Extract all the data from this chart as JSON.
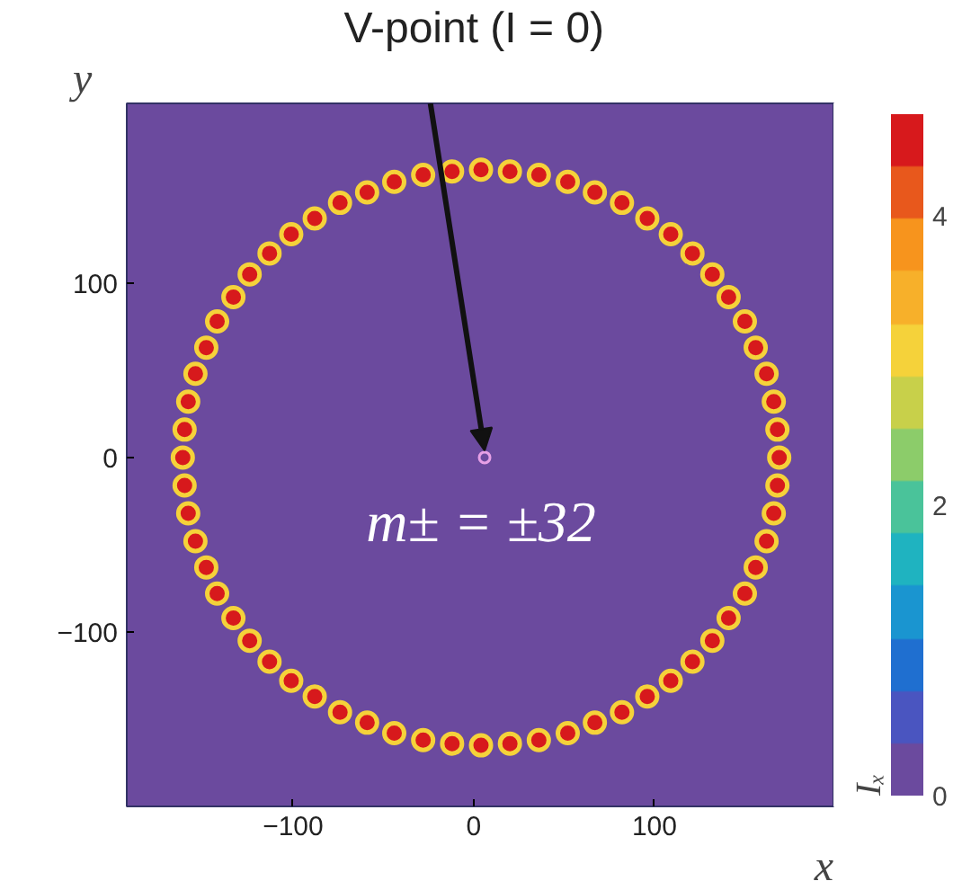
{
  "chart_data": {
    "type": "scatter",
    "x": [
      169,
      168,
      166,
      162,
      156,
      150,
      141,
      132,
      121,
      109,
      96,
      82,
      67,
      52,
      36,
      20,
      4,
      -12,
      -28,
      -44,
      -59,
      -74,
      -88,
      -101,
      -113,
      -124,
      -133,
      -142,
      -148,
      -154,
      -158,
      -160,
      -161,
      -160,
      -158,
      -154,
      -148,
      -142,
      -133,
      -124,
      -113,
      -101,
      -88,
      -74,
      -59,
      -44,
      -28,
      -12,
      4,
      20,
      36,
      52,
      67,
      82,
      96,
      109,
      121,
      132,
      141,
      150,
      156,
      162,
      166,
      168
    ],
    "values": [
      0,
      16,
      32,
      48,
      63,
      78,
      92,
      105,
      117,
      128,
      137,
      146,
      152,
      158,
      162,
      164,
      165,
      164,
      162,
      158,
      152,
      146,
      137,
      128,
      117,
      105,
      92,
      78,
      63,
      48,
      32,
      16,
      0,
      -16,
      -32,
      -48,
      -63,
      -78,
      -92,
      -105,
      -117,
      -128,
      -137,
      -146,
      -152,
      -158,
      -162,
      -164,
      -165,
      -164,
      -162,
      -158,
      -152,
      -146,
      -137,
      -128,
      -117,
      -105,
      -92,
      -78,
      -63,
      -48,
      -32,
      -16
    ],
    "cvalues": [
      4.5,
      4.5,
      4.5,
      4.5,
      4.5,
      4.5,
      4.5,
      4.5,
      4.5,
      4.5,
      4.5,
      4.5,
      4.5,
      4.5,
      4.5,
      4.5,
      4.5,
      4.5,
      4.5,
      4.5,
      4.5,
      4.5,
      4.5,
      4.5,
      4.5,
      4.5,
      4.5,
      4.5,
      4.5,
      4.5,
      4.5,
      4.5,
      4.5,
      4.5,
      4.5,
      4.5,
      4.5,
      4.5,
      4.5,
      4.5,
      4.5,
      4.5,
      4.5,
      4.5,
      4.5,
      4.5,
      4.5,
      4.5,
      4.5,
      4.5,
      4.5,
      4.5,
      4.5,
      4.5,
      4.5,
      4.5,
      4.5,
      4.5,
      4.5,
      4.5,
      4.5,
      4.5,
      4.5,
      4.5
    ],
    "marker": "circle",
    "xlabel": "x",
    "ylabel": "y",
    "clabel": "Iₓ",
    "xlim": [
      -192,
      199
    ],
    "ylim": [
      -200,
      203
    ],
    "xticks": [
      -100,
      0,
      100
    ],
    "yticks": [
      -100,
      0,
      100
    ],
    "clim": [
      0,
      4.7
    ],
    "cticks": [
      0,
      2,
      4
    ],
    "annotations": [
      {
        "text": "V-point  (I = 0)",
        "x": 6,
        "y": 0
      },
      "m± = ±32"
    ],
    "grid": false
  }
}
